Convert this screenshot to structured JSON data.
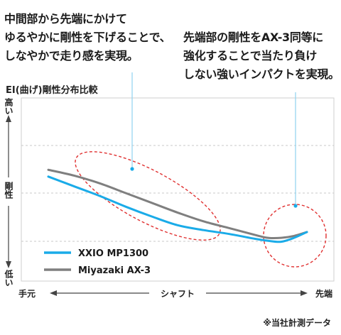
{
  "callouts": {
    "left": [
      "中間部から先端にかけて",
      "ゆるやかに剛性を下げることで、",
      "しなやかで走り感を実現。"
    ],
    "right": [
      "先端部の剛性をAX-3同等に",
      "強化することで当たり負け",
      "しない強いインパクトを実現。"
    ]
  },
  "note": "※当社計測データ",
  "colors": {
    "xxio": "#1aabe8",
    "miyazaki": "#7f7f7f",
    "highlight": "#e03030",
    "callout_line": "#8fd3f0"
  },
  "chart_data": {
    "type": "line",
    "title": "EI(曲げ)剛性分布比較",
    "ylabel": "剛性",
    "y_ends": {
      "top": "高い",
      "bottom": "低い"
    },
    "x_ticks": [
      "手元",
      "シャフト",
      "先端"
    ],
    "xlim": [
      0,
      100
    ],
    "ylim": [
      0,
      100
    ],
    "grid": true,
    "legend_position": "bottom-left",
    "series": [
      {
        "name": "XXIO MP1300",
        "color": "#1aabe8",
        "x": [
          0,
          10,
          20,
          30,
          40,
          50,
          60,
          70,
          80,
          85,
          90,
          95,
          100
        ],
        "y": [
          68,
          58,
          48,
          37,
          27,
          18,
          13,
          9,
          4,
          2,
          1,
          5,
          11
        ]
      },
      {
        "name": "Miyazaki AX-3",
        "color": "#7f7f7f",
        "x": [
          0,
          10,
          20,
          30,
          40,
          50,
          60,
          70,
          80,
          85,
          90,
          95,
          100
        ],
        "y": [
          75,
          69,
          61,
          51,
          41,
          31,
          22,
          15,
          8,
          5,
          5,
          7,
          11
        ]
      }
    ]
  }
}
